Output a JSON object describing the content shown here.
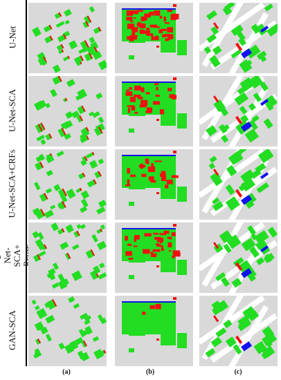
{
  "rows": [
    {
      "label": "U-Net"
    },
    {
      "label": "U-Net-SCA"
    },
    {
      "label": "U-Net-SCA+CRFs"
    },
    {
      "label": "U-Net-SCA+ Reuse"
    },
    {
      "label": "GAN-SCA"
    }
  ],
  "columns": [
    {
      "label": "(a)"
    },
    {
      "label": "(b)"
    },
    {
      "label": "(c)"
    }
  ],
  "colors": {
    "background": "#d9d9d9",
    "correct": "#22dd22",
    "false_positive": "#ee1111",
    "false_negative": "#1111ee",
    "white": "#ffffff"
  }
}
